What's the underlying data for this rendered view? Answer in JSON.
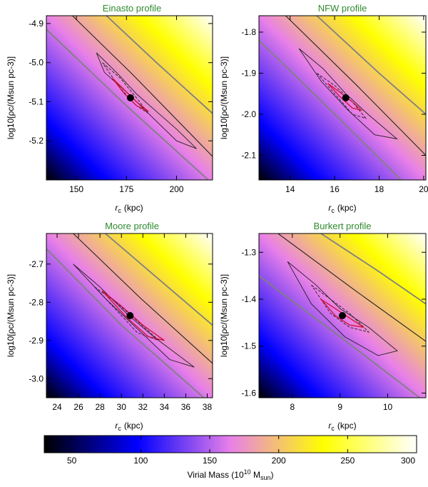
{
  "colors": {
    "colormap": [
      "#000000",
      "#0000ff",
      "#e880e8",
      "#ffff00",
      "#ffffff"
    ],
    "title": "#2e8b2e",
    "contour_dark": "#222222",
    "contour_red": "#cc1133",
    "mass_line": "#808080",
    "best_fit": "#000000"
  },
  "chart_data": [
    {
      "type": "heatmap",
      "title": "Einasto profile",
      "xlabel_main": "r",
      "xlabel_sub": "c",
      "xlabel_unit": "(kpc)",
      "ylabel": "log10[ρc/(Msun pc-3)]",
      "xlim": [
        135,
        218
      ],
      "ylim": [
        -5.3,
        -4.88
      ],
      "xticks": [
        150,
        175,
        200
      ],
      "yticks": [
        -5.2,
        -5.1,
        -5.0,
        -4.9
      ],
      "best_fit": [
        177,
        -5.09
      ],
      "mass_lines": [
        {
          "virial_mass_1e10": 100,
          "points": [
            [
              135,
              -4.915
            ],
            [
              176,
              -5.115
            ],
            [
              218,
              -5.31
            ]
          ]
        },
        {
          "virial_mass_1e10": 150,
          "points": [
            [
              148,
              -4.88
            ],
            [
              178,
              -5.03
            ],
            [
              218,
              -5.24
            ]
          ]
        },
        {
          "virial_mass_1e10": 200,
          "points": [
            [
              165,
              -4.88
            ],
            [
              190,
              -5.0
            ],
            [
              218,
              -5.13
            ]
          ]
        }
      ],
      "contours": [
        {
          "style": "outer",
          "points": [
            [
              160,
              -4.975
            ],
            [
              170,
              -5.025
            ],
            [
              180,
              -5.08
            ],
            [
              190,
              -5.125
            ],
            [
              200,
              -5.17
            ],
            [
              210,
              -5.22
            ],
            [
              200,
              -5.2
            ],
            [
              188,
              -5.14
            ],
            [
              176,
              -5.08
            ],
            [
              164,
              -5.025
            ],
            [
              160,
              -4.975
            ]
          ]
        },
        {
          "style": "dash",
          "points": [
            [
              163,
              -5.0
            ],
            [
              172,
              -5.04
            ],
            [
              180,
              -5.09
            ],
            [
              186,
              -5.13
            ],
            [
              180,
              -5.11
            ],
            [
              171,
              -5.06
            ],
            [
              163,
              -5.0
            ]
          ]
        },
        {
          "style": "red",
          "points": [
            [
              168,
              -5.04
            ],
            [
              174,
              -5.07
            ],
            [
              180,
              -5.1
            ],
            [
              186,
              -5.125
            ],
            [
              180,
              -5.11
            ],
            [
              174,
              -5.08
            ],
            [
              168,
              -5.04
            ]
          ]
        }
      ]
    },
    {
      "type": "heatmap",
      "title": "NFW profile",
      "xlabel_main": "r",
      "xlabel_sub": "c",
      "xlabel_unit": "(kpc)",
      "ylabel": "log10[ρc/(Msun pc-3)]",
      "xlim": [
        12.6,
        20.1
      ],
      "ylim": [
        -2.16,
        -1.76
      ],
      "xticks": [
        14,
        16,
        18,
        20
      ],
      "yticks": [
        -2.1,
        -2.0,
        -1.9,
        -1.8
      ],
      "best_fit": [
        16.5,
        -1.96
      ],
      "mass_lines": [
        {
          "virial_mass_1e10": 100,
          "points": [
            [
              12.6,
              -1.82
            ],
            [
              16.2,
              -2.01
            ],
            [
              20.1,
              -2.22
            ]
          ]
        },
        {
          "virial_mass_1e10": 150,
          "points": [
            [
              13.8,
              -1.76
            ],
            [
              17.0,
              -1.93
            ],
            [
              20.1,
              -2.1
            ]
          ]
        },
        {
          "virial_mass_1e10": 200,
          "points": [
            [
              15.2,
              -1.76
            ],
            [
              18.0,
              -1.9
            ],
            [
              20.1,
              -2.0
            ]
          ]
        }
      ],
      "contours": [
        {
          "style": "outer",
          "points": [
            [
              14.4,
              -1.84
            ],
            [
              15.5,
              -1.89
            ],
            [
              16.5,
              -1.95
            ],
            [
              17.5,
              -2.0
            ],
            [
              18.8,
              -2.06
            ],
            [
              17.8,
              -2.05
            ],
            [
              16.6,
              -1.99
            ],
            [
              15.4,
              -1.92
            ],
            [
              14.4,
              -1.84
            ]
          ]
        },
        {
          "style": "dash",
          "points": [
            [
              15.2,
              -1.9
            ],
            [
              16.0,
              -1.93
            ],
            [
              16.8,
              -1.97
            ],
            [
              17.4,
              -2.01
            ],
            [
              16.8,
              -2.0
            ],
            [
              16.0,
              -1.95
            ],
            [
              15.2,
              -1.9
            ]
          ]
        },
        {
          "style": "red",
          "points": [
            [
              15.7,
              -1.925
            ],
            [
              16.2,
              -1.945
            ],
            [
              16.8,
              -1.97
            ],
            [
              17.2,
              -1.99
            ],
            [
              16.8,
              -1.985
            ],
            [
              16.2,
              -1.955
            ],
            [
              15.7,
              -1.925
            ]
          ]
        }
      ]
    },
    {
      "type": "heatmap",
      "title": "Moore profile",
      "xlabel_main": "r",
      "xlabel_sub": "c",
      "xlabel_unit": "(kpc)",
      "ylabel": "log10[ρc/(Msun pc-3)]",
      "xlim": [
        23,
        38.5
      ],
      "ylim": [
        -3.05,
        -2.62
      ],
      "xticks": [
        24,
        26,
        28,
        30,
        32,
        34,
        36,
        38
      ],
      "yticks": [
        -3.0,
        -2.9,
        -2.8,
        -2.7
      ],
      "best_fit": [
        30.8,
        -2.835
      ],
      "mass_lines": [
        {
          "virial_mass_1e10": 100,
          "points": [
            [
              23,
              -2.66
            ],
            [
              30.0,
              -2.86
            ],
            [
              38.5,
              -3.07
            ]
          ]
        },
        {
          "virial_mass_1e10": 150,
          "points": [
            [
              25.5,
              -2.62
            ],
            [
              31.8,
              -2.79
            ],
            [
              38.5,
              -2.96
            ]
          ]
        },
        {
          "virial_mass_1e10": 200,
          "points": [
            [
              28.5,
              -2.62
            ],
            [
              33.5,
              -2.74
            ],
            [
              38.5,
              -2.86
            ]
          ]
        }
      ],
      "contours": [
        {
          "style": "outer",
          "points": [
            [
              25.5,
              -2.7
            ],
            [
              28.0,
              -2.76
            ],
            [
              30.5,
              -2.83
            ],
            [
              33.0,
              -2.89
            ],
            [
              36.8,
              -2.97
            ],
            [
              34.5,
              -2.95
            ],
            [
              31.5,
              -2.87
            ],
            [
              28.5,
              -2.79
            ],
            [
              25.5,
              -2.7
            ]
          ]
        },
        {
          "style": "dash",
          "points": [
            [
              27.5,
              -2.76
            ],
            [
              29.5,
              -2.8
            ],
            [
              31.5,
              -2.85
            ],
            [
              33.5,
              -2.9
            ],
            [
              31.5,
              -2.88
            ],
            [
              29.5,
              -2.82
            ],
            [
              27.5,
              -2.76
            ]
          ]
        },
        {
          "style": "red",
          "points": [
            [
              28.2,
              -2.77
            ],
            [
              30.0,
              -2.81
            ],
            [
              32.0,
              -2.86
            ],
            [
              34.0,
              -2.9
            ],
            [
              32.5,
              -2.89
            ],
            [
              30.5,
              -2.84
            ],
            [
              28.2,
              -2.77
            ]
          ]
        }
      ]
    },
    {
      "type": "heatmap",
      "title": "Burkert profile",
      "xlabel_main": "r",
      "xlabel_sub": "c",
      "xlabel_unit": "(kpc)",
      "ylabel": "log10[ρc/(Msun pc-3)]",
      "xlim": [
        7.3,
        10.8
      ],
      "ylim": [
        -1.61,
        -1.26
      ],
      "xticks": [
        8,
        9,
        10
      ],
      "yticks": [
        -1.6,
        -1.5,
        -1.4,
        -1.3
      ],
      "best_fit": [
        9.05,
        -1.435
      ],
      "mass_lines": [
        {
          "virial_mass_1e10": 100,
          "points": [
            [
              7.3,
              -1.35
            ],
            [
              9.0,
              -1.48
            ],
            [
              10.8,
              -1.62
            ]
          ]
        },
        {
          "virial_mass_1e10": 150,
          "points": [
            [
              7.7,
              -1.26
            ],
            [
              9.3,
              -1.38
            ],
            [
              10.8,
              -1.49
            ]
          ]
        },
        {
          "virial_mass_1e10": 200,
          "points": [
            [
              8.6,
              -1.26
            ],
            [
              9.8,
              -1.34
            ],
            [
              10.8,
              -1.41
            ]
          ]
        }
      ],
      "contours": [
        {
          "style": "outer",
          "points": [
            [
              7.9,
              -1.32
            ],
            [
              8.5,
              -1.37
            ],
            [
              9.0,
              -1.42
            ],
            [
              9.6,
              -1.46
            ],
            [
              10.2,
              -1.51
            ],
            [
              9.8,
              -1.52
            ],
            [
              9.1,
              -1.48
            ],
            [
              8.4,
              -1.41
            ],
            [
              7.9,
              -1.32
            ]
          ]
        },
        {
          "style": "dash",
          "points": [
            [
              8.4,
              -1.37
            ],
            [
              8.8,
              -1.4
            ],
            [
              9.2,
              -1.43
            ],
            [
              9.6,
              -1.47
            ],
            [
              9.2,
              -1.46
            ],
            [
              8.8,
              -1.43
            ],
            [
              8.4,
              -1.37
            ]
          ]
        },
        {
          "style": "red",
          "points": [
            [
              8.6,
              -1.4
            ],
            [
              8.9,
              -1.42
            ],
            [
              9.2,
              -1.44
            ],
            [
              9.5,
              -1.46
            ],
            [
              9.2,
              -1.455
            ],
            [
              8.9,
              -1.435
            ],
            [
              8.6,
              -1.4
            ]
          ]
        }
      ]
    }
  ],
  "colorbar": {
    "min": 30,
    "max": 300,
    "ticks": [
      50,
      100,
      150,
      200,
      250,
      300
    ],
    "label_main": "Virial Mass (10",
    "label_sup": "10",
    "label_tail": " M",
    "label_sub": "sun",
    "label_close": ")"
  }
}
